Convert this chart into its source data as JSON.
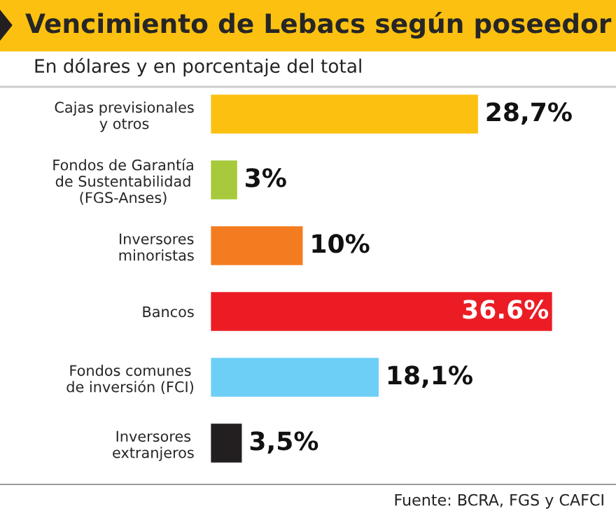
{
  "chart_data": {
    "type": "bar",
    "orientation": "horizontal",
    "title": "Vencimiento de Lebacs según poseedor",
    "subtitle": "En dólares y en porcentaje del total",
    "categories": [
      "Cajas previsionales\ny otros",
      "Fondos de Garantía\nde Sustentabilidad\n(FGS-Anses)",
      "Inversores\nminoristas",
      "Bancos",
      "Fondos comunes\nde inversión (FCI)",
      "Inversores\nextranjeros"
    ],
    "values": [
      28.7,
      3,
      10,
      36.6,
      18.1,
      3.5
    ],
    "colors": [
      "#fcc010",
      "#a6ca3b",
      "#f47c20",
      "#ec1c24",
      "#6dcff6",
      "#231f20"
    ],
    "value_labels": [
      "28,7%",
      "3%",
      "10%",
      "36.6%",
      "18,1%",
      "3,5%"
    ],
    "annotations": [
      "Fuente: BCRA, FGS y CAFCI"
    ]
  }
}
